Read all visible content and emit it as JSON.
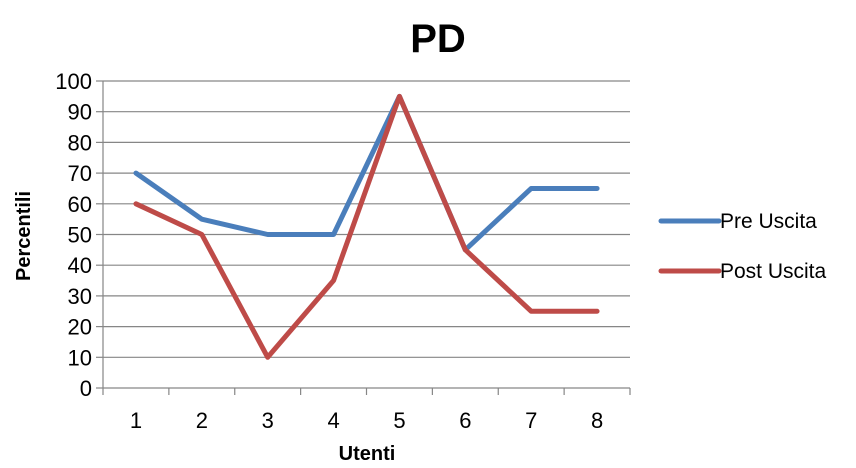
{
  "chart_data": {
    "type": "line",
    "title": "PD",
    "xlabel": "Utenti",
    "ylabel": "Percentili",
    "categories": [
      "1",
      "2",
      "3",
      "4",
      "5",
      "6",
      "7",
      "8"
    ],
    "ylim": [
      0,
      100
    ],
    "yticks": [
      "0",
      "10",
      "20",
      "30",
      "40",
      "50",
      "60",
      "70",
      "80",
      "90",
      "100"
    ],
    "grid": true,
    "legend_position": "right",
    "series": [
      {
        "name": "Pre Uscita",
        "color": "#4A7EBB",
        "values": [
          70,
          55,
          50,
          50,
          95,
          45,
          65,
          65
        ]
      },
      {
        "name": "Post Uscita",
        "color": "#BE4B48",
        "values": [
          60,
          50,
          10,
          35,
          95,
          45,
          25,
          25
        ]
      }
    ]
  }
}
